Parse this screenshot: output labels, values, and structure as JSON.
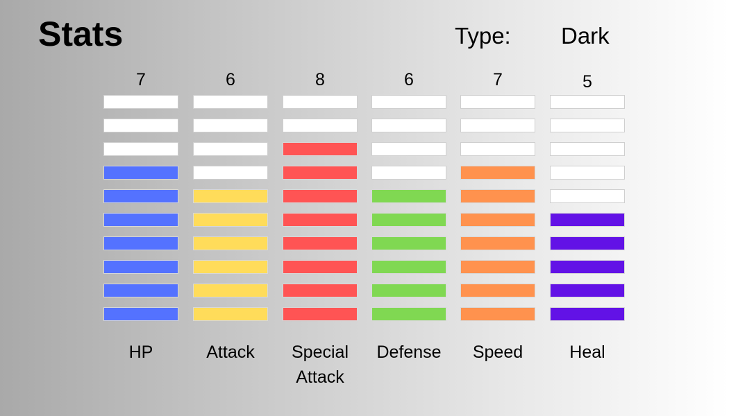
{
  "header": {
    "title": "Stats",
    "type_label": "Type:",
    "type_value": "Dark"
  },
  "stats": [
    {
      "name": "HP",
      "value": "7",
      "color": "#5472ff"
    },
    {
      "name": "Attack",
      "value": "6",
      "color": "#ffdc5a"
    },
    {
      "name": "Special Attack",
      "value": "8",
      "color": "#ff5454"
    },
    {
      "name": "Defense",
      "value": "6",
      "color": "#80d852"
    },
    {
      "name": "Speed",
      "value": "7",
      "color": "#ff924e"
    },
    {
      "name": "Heal",
      "value": "5",
      "color": "#6212e6"
    }
  ],
  "max_level": 10
}
